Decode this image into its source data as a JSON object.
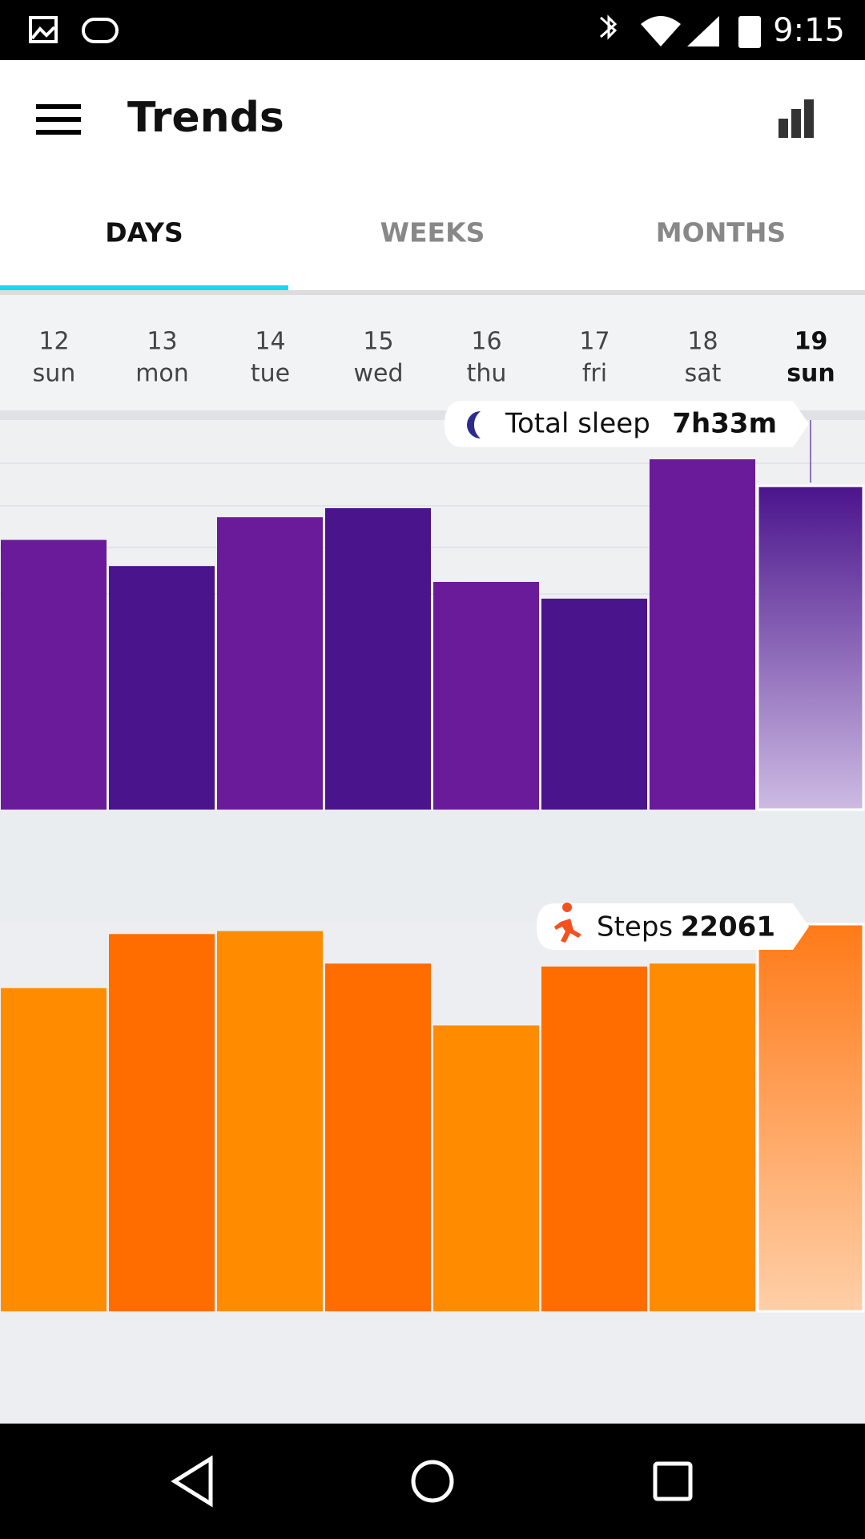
{
  "status_bar": {
    "time": "9:15"
  },
  "app_bar": {
    "title": "Trends"
  },
  "tabs": [
    "DAYS",
    "WEEKS",
    "MONTHS"
  ],
  "days": [
    {
      "date": "12",
      "weekday": "sun"
    },
    {
      "date": "13",
      "weekday": "mon"
    },
    {
      "date": "14",
      "weekday": "tue"
    },
    {
      "date": "15",
      "weekday": "wed"
    },
    {
      "date": "16",
      "weekday": "thu"
    },
    {
      "date": "17",
      "weekday": "fri"
    },
    {
      "date": "18",
      "weekday": "sat"
    },
    {
      "date": "19",
      "weekday": "sun"
    }
  ],
  "sleep": {
    "label": "Total sleep",
    "selected_value_label": "7h33m",
    "values": [
      6.29,
      5.68,
      6.82,
      7.03,
      5.31,
      4.92,
      8.17,
      7.55
    ],
    "colors": [
      "#6a1b9a",
      "#4a148c"
    ]
  },
  "steps": {
    "label": "Steps",
    "selected_value_label": "22061",
    "values": [
      18420,
      21500,
      21670,
      19820,
      16290,
      19650,
      19820,
      22061
    ],
    "colors": [
      "#ff8c00",
      "#ff6d00"
    ]
  }
}
